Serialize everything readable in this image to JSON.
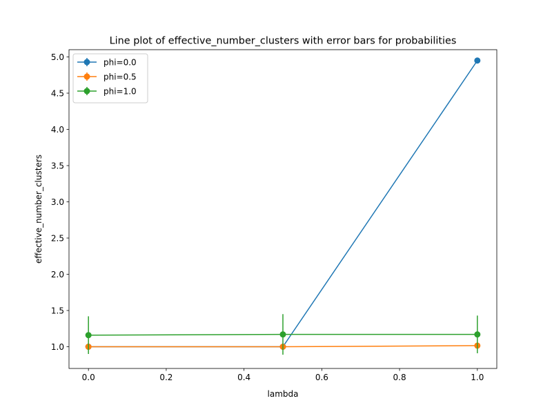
{
  "chart_data": {
    "type": "line",
    "title": "Line plot of effective_number_clusters with error bars for probabilities",
    "xlabel": "lambda",
    "ylabel": "effective_number_clusters",
    "xlim": [
      -0.05,
      1.05
    ],
    "ylim": [
      0.7,
      5.1
    ],
    "xticks": [
      0.0,
      0.2,
      0.4,
      0.6,
      0.8,
      1.0
    ],
    "xtick_labels": [
      "0.0",
      "0.2",
      "0.4",
      "0.6",
      "0.8",
      "1.0"
    ],
    "yticks": [
      1.0,
      1.5,
      2.0,
      2.5,
      3.0,
      3.5,
      4.0,
      4.5,
      5.0
    ],
    "ytick_labels": [
      "1.0",
      "1.5",
      "2.0",
      "2.5",
      "3.0",
      "3.5",
      "4.0",
      "4.5",
      "5.0"
    ],
    "grid": false,
    "legend_position": "top-left",
    "series": [
      {
        "name": "phi=0.0",
        "color": "#1f77b4",
        "x": [
          0.0,
          0.5,
          1.0
        ],
        "y": [
          1.0,
          1.0,
          4.95
        ],
        "yerr": [
          0.0,
          0.0,
          0.0
        ]
      },
      {
        "name": "phi=0.5",
        "color": "#ff7f0e",
        "x": [
          0.0,
          0.5,
          1.0
        ],
        "y": [
          1.0,
          1.0,
          1.015
        ],
        "yerr": [
          0.0,
          0.0,
          0.0
        ]
      },
      {
        "name": "phi=1.0",
        "color": "#2ca02c",
        "x": [
          0.0,
          0.5,
          1.0
        ],
        "y": [
          1.16,
          1.17,
          1.17
        ],
        "yerr": [
          0.26,
          0.28,
          0.26
        ]
      }
    ]
  }
}
